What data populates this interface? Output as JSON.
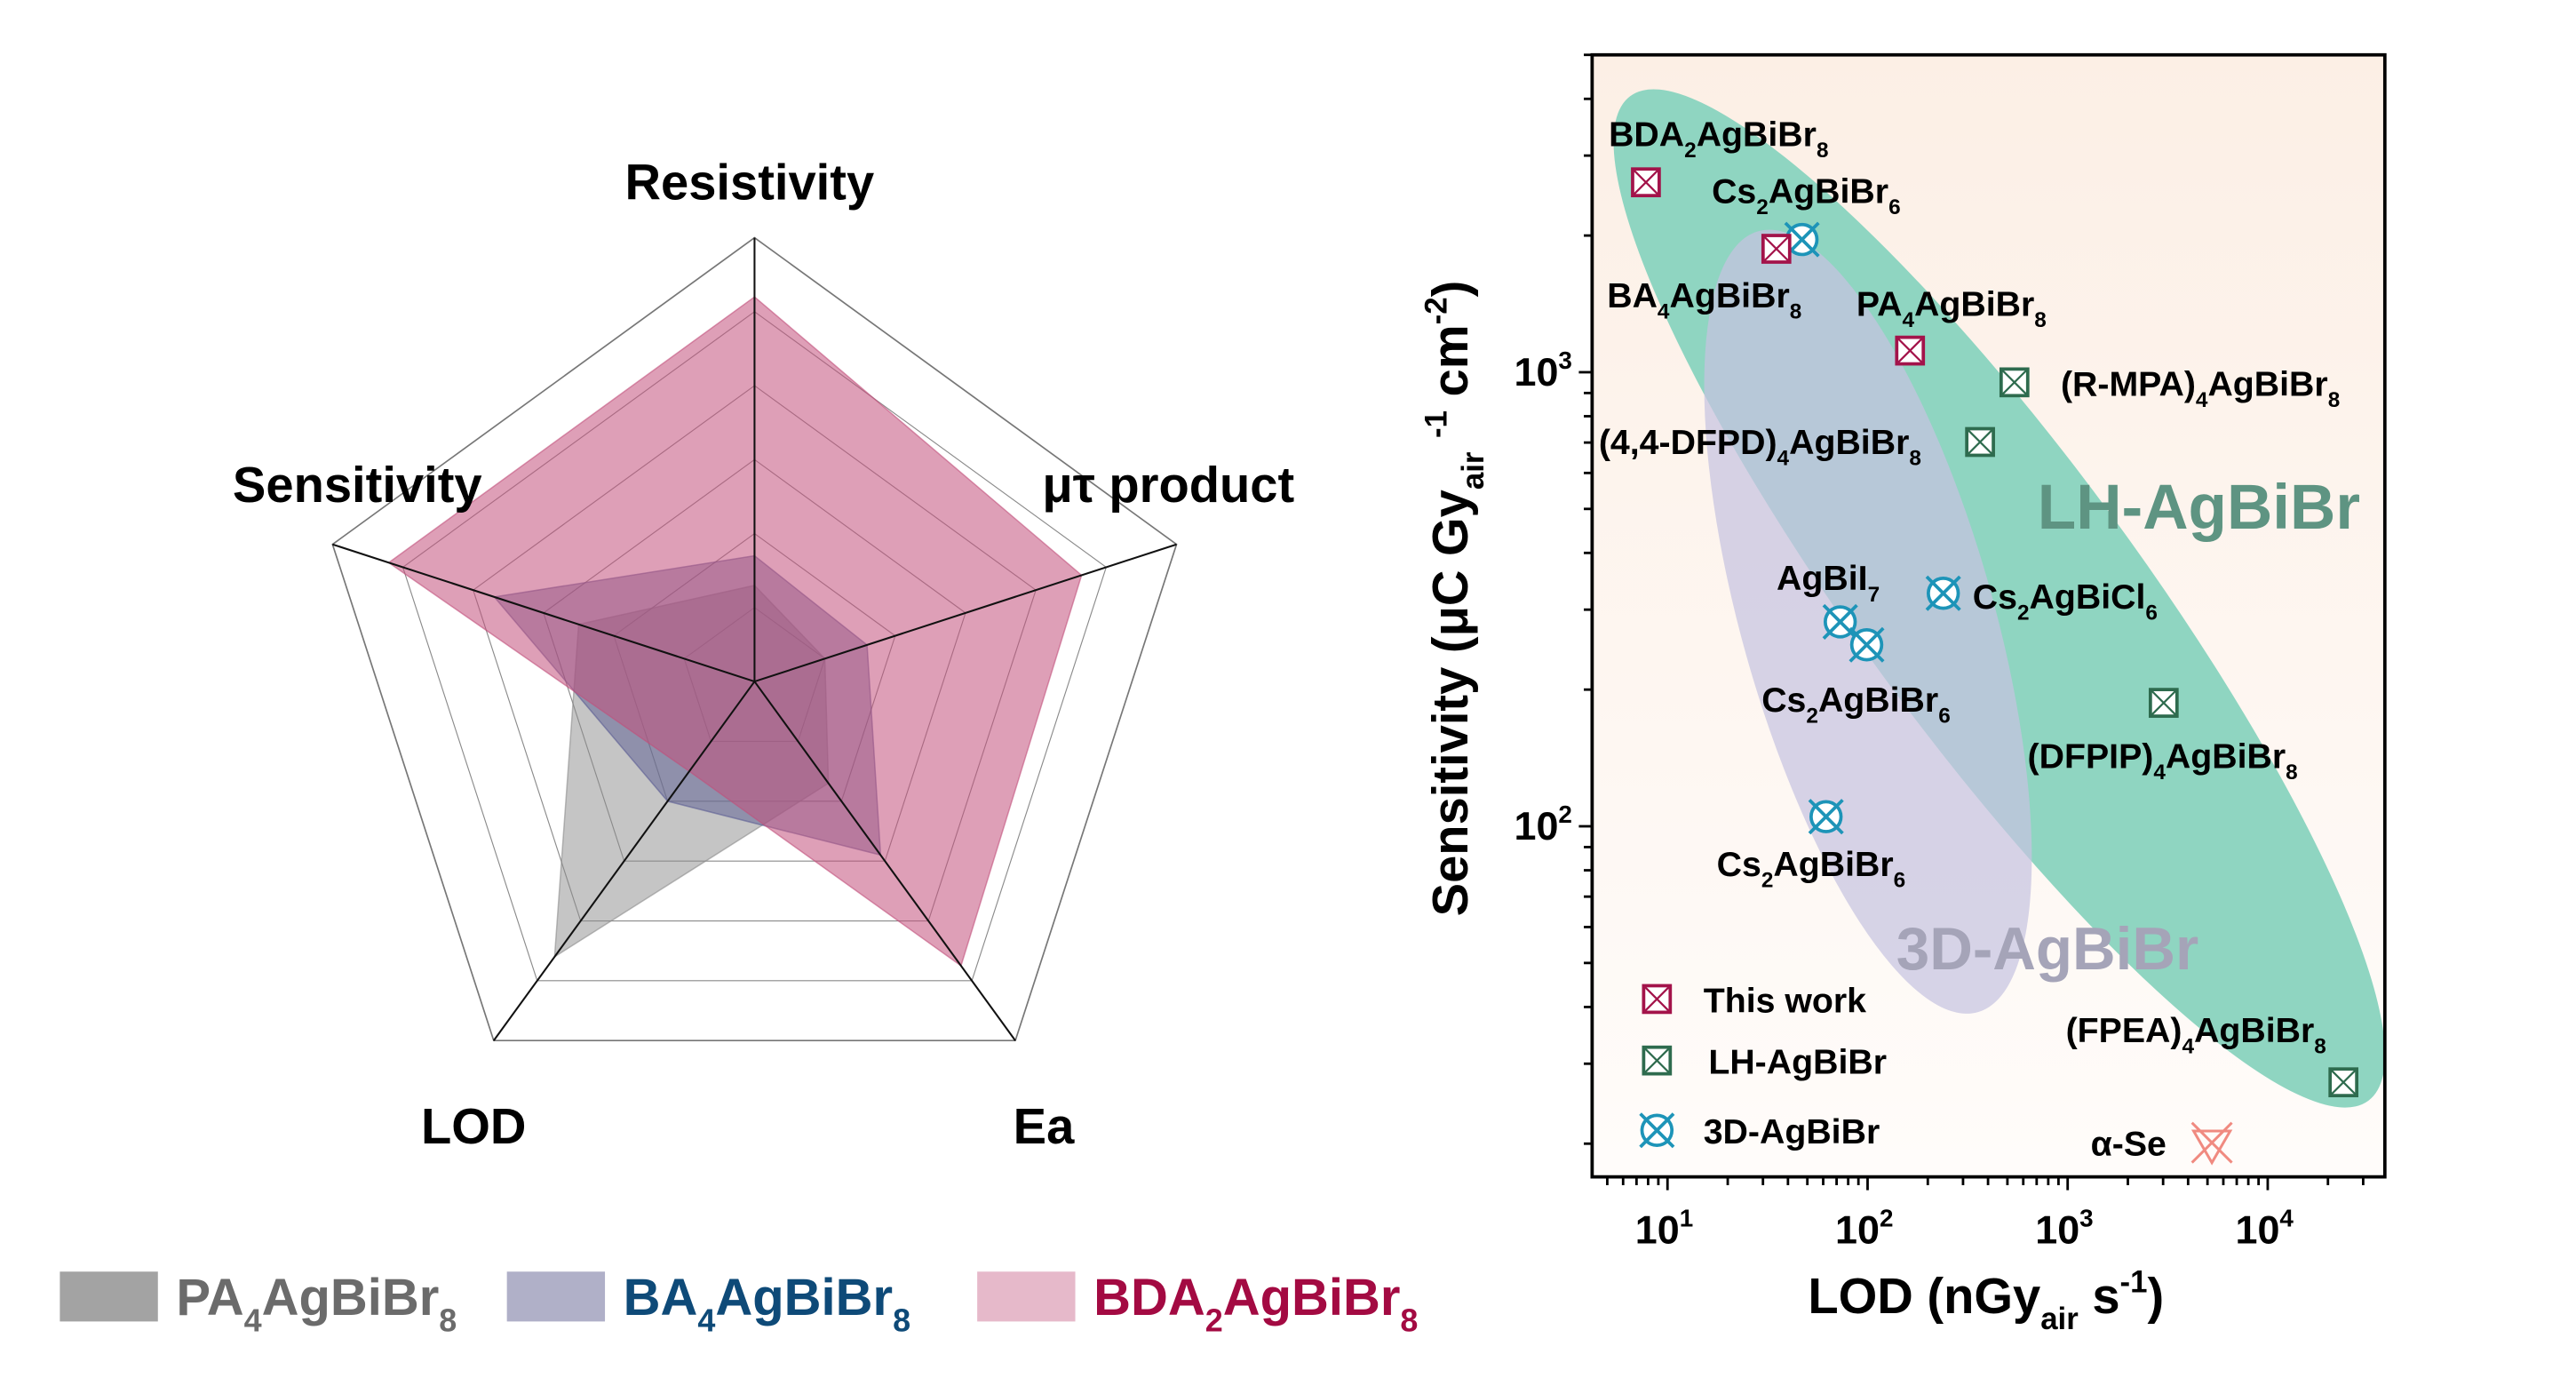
{
  "chart_data": [
    {
      "type": "radar",
      "axes": [
        "Resistivity",
        "μτ product",
        "Ea",
        "LOD",
        "Sensitivity"
      ],
      "levels": 6,
      "range": [
        0,
        6
      ],
      "legend_position": "bottom",
      "series": [
        {
          "name_parts": [
            [
              "PA",
              ""
            ],
            [
              "4",
              "sub"
            ],
            [
              "AgBiBr",
              ""
            ],
            [
              "8",
              "sub"
            ]
          ],
          "fill": "#8c8c8c",
          "swatch": "#a3a3a3",
          "label_color": "#6b6b6b",
          "values": [
            1.3,
            1.0,
            1.7,
            4.6,
            2.5
          ]
        },
        {
          "name_parts": [
            [
              "BA",
              ""
            ],
            [
              "4",
              "sub"
            ],
            [
              "AgBiBr",
              ""
            ],
            [
              "8",
              "sub"
            ]
          ],
          "fill": "#5a5c92",
          "swatch": "#b0b0c8",
          "label_color": "#0e4a78",
          "values": [
            1.7,
            1.6,
            2.9,
            2.0,
            3.7
          ]
        },
        {
          "name_parts": [
            [
              "BDA",
              ""
            ],
            [
              "2",
              "sub"
            ],
            [
              "AgBiBr",
              ""
            ],
            [
              "8",
              "sub"
            ]
          ],
          "fill": "#c2507c",
          "swatch": "#e6b9ca",
          "label_color": "#a30a42",
          "values": [
            5.2,
            4.65,
            4.75,
            1.5,
            5.2
          ]
        }
      ]
    },
    {
      "type": "scatter",
      "xscale": "log",
      "yscale": "log",
      "xlim": [
        4.2,
        38500
      ],
      "ylim": [
        16.9,
        5000
      ],
      "xticks": [
        10,
        100,
        1000,
        10000
      ],
      "yticks": [
        100,
        1000
      ],
      "xlabel_parts": [
        [
          "LOD (nGy",
          ""
        ],
        [
          "air",
          "sub"
        ],
        [
          " s",
          ""
        ],
        [
          "-1",
          "sup"
        ],
        [
          ")",
          ""
        ]
      ],
      "ylabel_parts": [
        [
          "Sensitivity (μC Gy",
          ""
        ],
        [
          "air",
          "sub"
        ],
        [
          " ",
          ""
        ],
        [
          "-1",
          "sup"
        ],
        [
          " cm",
          ""
        ],
        [
          "-2",
          "sup"
        ],
        [
          ")",
          ""
        ]
      ],
      "groups": [
        {
          "name": "This work",
          "marker": "square-x",
          "color": "#a3134a"
        },
        {
          "name": "LH-AgBiBr",
          "marker": "square-x",
          "color": "#2e6b4e"
        },
        {
          "name": "3D-AgBiBr",
          "marker": "circle-x",
          "color": "#1d94b8"
        },
        {
          "name": "α-Se",
          "marker": "triangle-x",
          "color": "#f08a80"
        }
      ],
      "regions": [
        {
          "name": "LH-AgBiBr",
          "fill": "#8fd5c1",
          "text_color": "#5e9482"
        },
        {
          "name": "3D-AgBiBr",
          "fill": "#c6c4e0",
          "text_color": "#a5a4b8"
        }
      ],
      "legend_position": "bottom-left",
      "points": [
        {
          "label_parts": [
            [
              "BDA",
              ""
            ],
            [
              "2",
              "sub"
            ],
            [
              "AgBiBr",
              ""
            ],
            [
              "8",
              "sub"
            ]
          ],
          "x": 7.8,
          "y": 2620,
          "group": 0
        },
        {
          "label_parts": [
            [
              "Cs",
              ""
            ],
            [
              "2",
              "sub"
            ],
            [
              "AgBiBr",
              ""
            ],
            [
              "6",
              "sub"
            ]
          ],
          "x": 47,
          "y": 1960,
          "group": 2
        },
        {
          "label_parts": [
            [
              "BA",
              ""
            ],
            [
              "4",
              "sub"
            ],
            [
              "AgBiBr",
              ""
            ],
            [
              "8",
              "sub"
            ]
          ],
          "x": 35,
          "y": 1870,
          "group": 0
        },
        {
          "label_parts": [
            [
              "PA",
              ""
            ],
            [
              "4",
              "sub"
            ],
            [
              "AgBiBr",
              ""
            ],
            [
              "8",
              "sub"
            ]
          ],
          "x": 163,
          "y": 1116,
          "group": 0
        },
        {
          "label_parts": [
            [
              "(R-MPA)",
              ""
            ],
            [
              "4",
              "sub"
            ],
            [
              "AgBiBr",
              ""
            ],
            [
              "8",
              "sub"
            ]
          ],
          "x": 542,
          "y": 950,
          "group": 1
        },
        {
          "label_parts": [
            [
              "(4,4-DFPD)",
              ""
            ],
            [
              "4",
              "sub"
            ],
            [
              "AgBiBr",
              ""
            ],
            [
              "8",
              "sub"
            ]
          ],
          "x": 365,
          "y": 702,
          "group": 1
        },
        {
          "label_parts": [
            [
              "AgBiI",
              ""
            ],
            [
              "7",
              "sub"
            ]
          ],
          "x": 73,
          "y": 282,
          "group": 2
        },
        {
          "label_parts": [
            [
              "Cs",
              ""
            ],
            [
              "2",
              "sub"
            ],
            [
              "AgBiCl",
              ""
            ],
            [
              "6",
              "sub"
            ]
          ],
          "x": 239,
          "y": 326,
          "group": 2
        },
        {
          "label_parts": [
            [
              "Cs",
              ""
            ],
            [
              "2",
              "sub"
            ],
            [
              "AgBiBr",
              ""
            ],
            [
              "6",
              "sub"
            ]
          ],
          "x": 99,
          "y": 251,
          "group": 2
        },
        {
          "label_parts": [
            [
              "(DFPIP)",
              ""
            ],
            [
              "4",
              "sub"
            ],
            [
              "AgBiBr",
              ""
            ],
            [
              "8",
              "sub"
            ]
          ],
          "x": 3020,
          "y": 187,
          "group": 1
        },
        {
          "label_parts": [
            [
              "Cs",
              ""
            ],
            [
              "2",
              "sub"
            ],
            [
              "AgBiBr",
              ""
            ],
            [
              "6",
              "sub"
            ]
          ],
          "x": 62,
          "y": 105,
          "group": 2
        },
        {
          "label_parts": [
            [
              "(FPEA)",
              ""
            ],
            [
              "4",
              "sub"
            ],
            [
              "AgBiBr",
              ""
            ],
            [
              "8",
              "sub"
            ]
          ],
          "x": 23900,
          "y": 27.3,
          "group": 1
        },
        {
          "label_parts": [
            [
              "α-Se",
              ""
            ]
          ],
          "x": 5260,
          "y": 20.1,
          "group": 3
        }
      ]
    }
  ]
}
